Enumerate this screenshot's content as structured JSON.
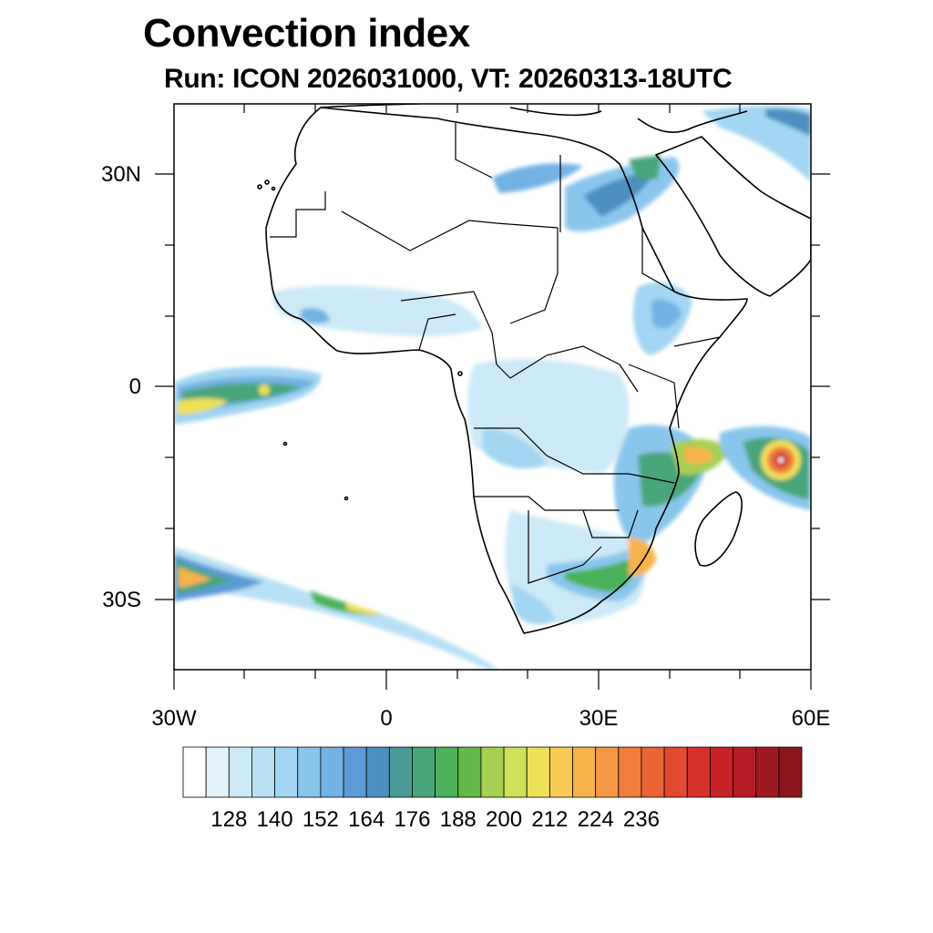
{
  "header": {
    "title": "Convection index",
    "subtitle": "Run: ICON 2026031000,  VT: 20260313-18UTC"
  },
  "axes": {
    "y_ticks": [
      {
        "label": "30N",
        "lat": 30
      },
      {
        "label": "0",
        "lat": 0
      },
      {
        "label": "30S",
        "lat": -30
      }
    ],
    "x_ticks": [
      {
        "label": "30W",
        "lon": -30
      },
      {
        "label": "0",
        "lon": 0
      },
      {
        "label": "30E",
        "lon": 30
      },
      {
        "label": "60E",
        "lon": 60
      }
    ],
    "lon_range": [
      -30,
      60
    ],
    "lat_range": [
      -40,
      40
    ]
  },
  "colorbar": {
    "labels": [
      "128",
      "140",
      "152",
      "164",
      "176",
      "188",
      "200",
      "212",
      "224",
      "236"
    ],
    "colors": [
      "#ffffff",
      "#e4f3fb",
      "#cce9f7",
      "#b8e1f5",
      "#a2d6f2",
      "#8ac6ec",
      "#73b2e3",
      "#5c9bd6",
      "#4d8fc0",
      "#4a9a98",
      "#49a57a",
      "#4cb15a",
      "#63ba4a",
      "#a6d052",
      "#cfe156",
      "#efe05a",
      "#f8cb55",
      "#f7b24c",
      "#f59744",
      "#f07d3c",
      "#ea6434",
      "#e14a2f",
      "#d6322b",
      "#c72228",
      "#b51c24",
      "#a01920",
      "#8c161c"
    ]
  }
}
